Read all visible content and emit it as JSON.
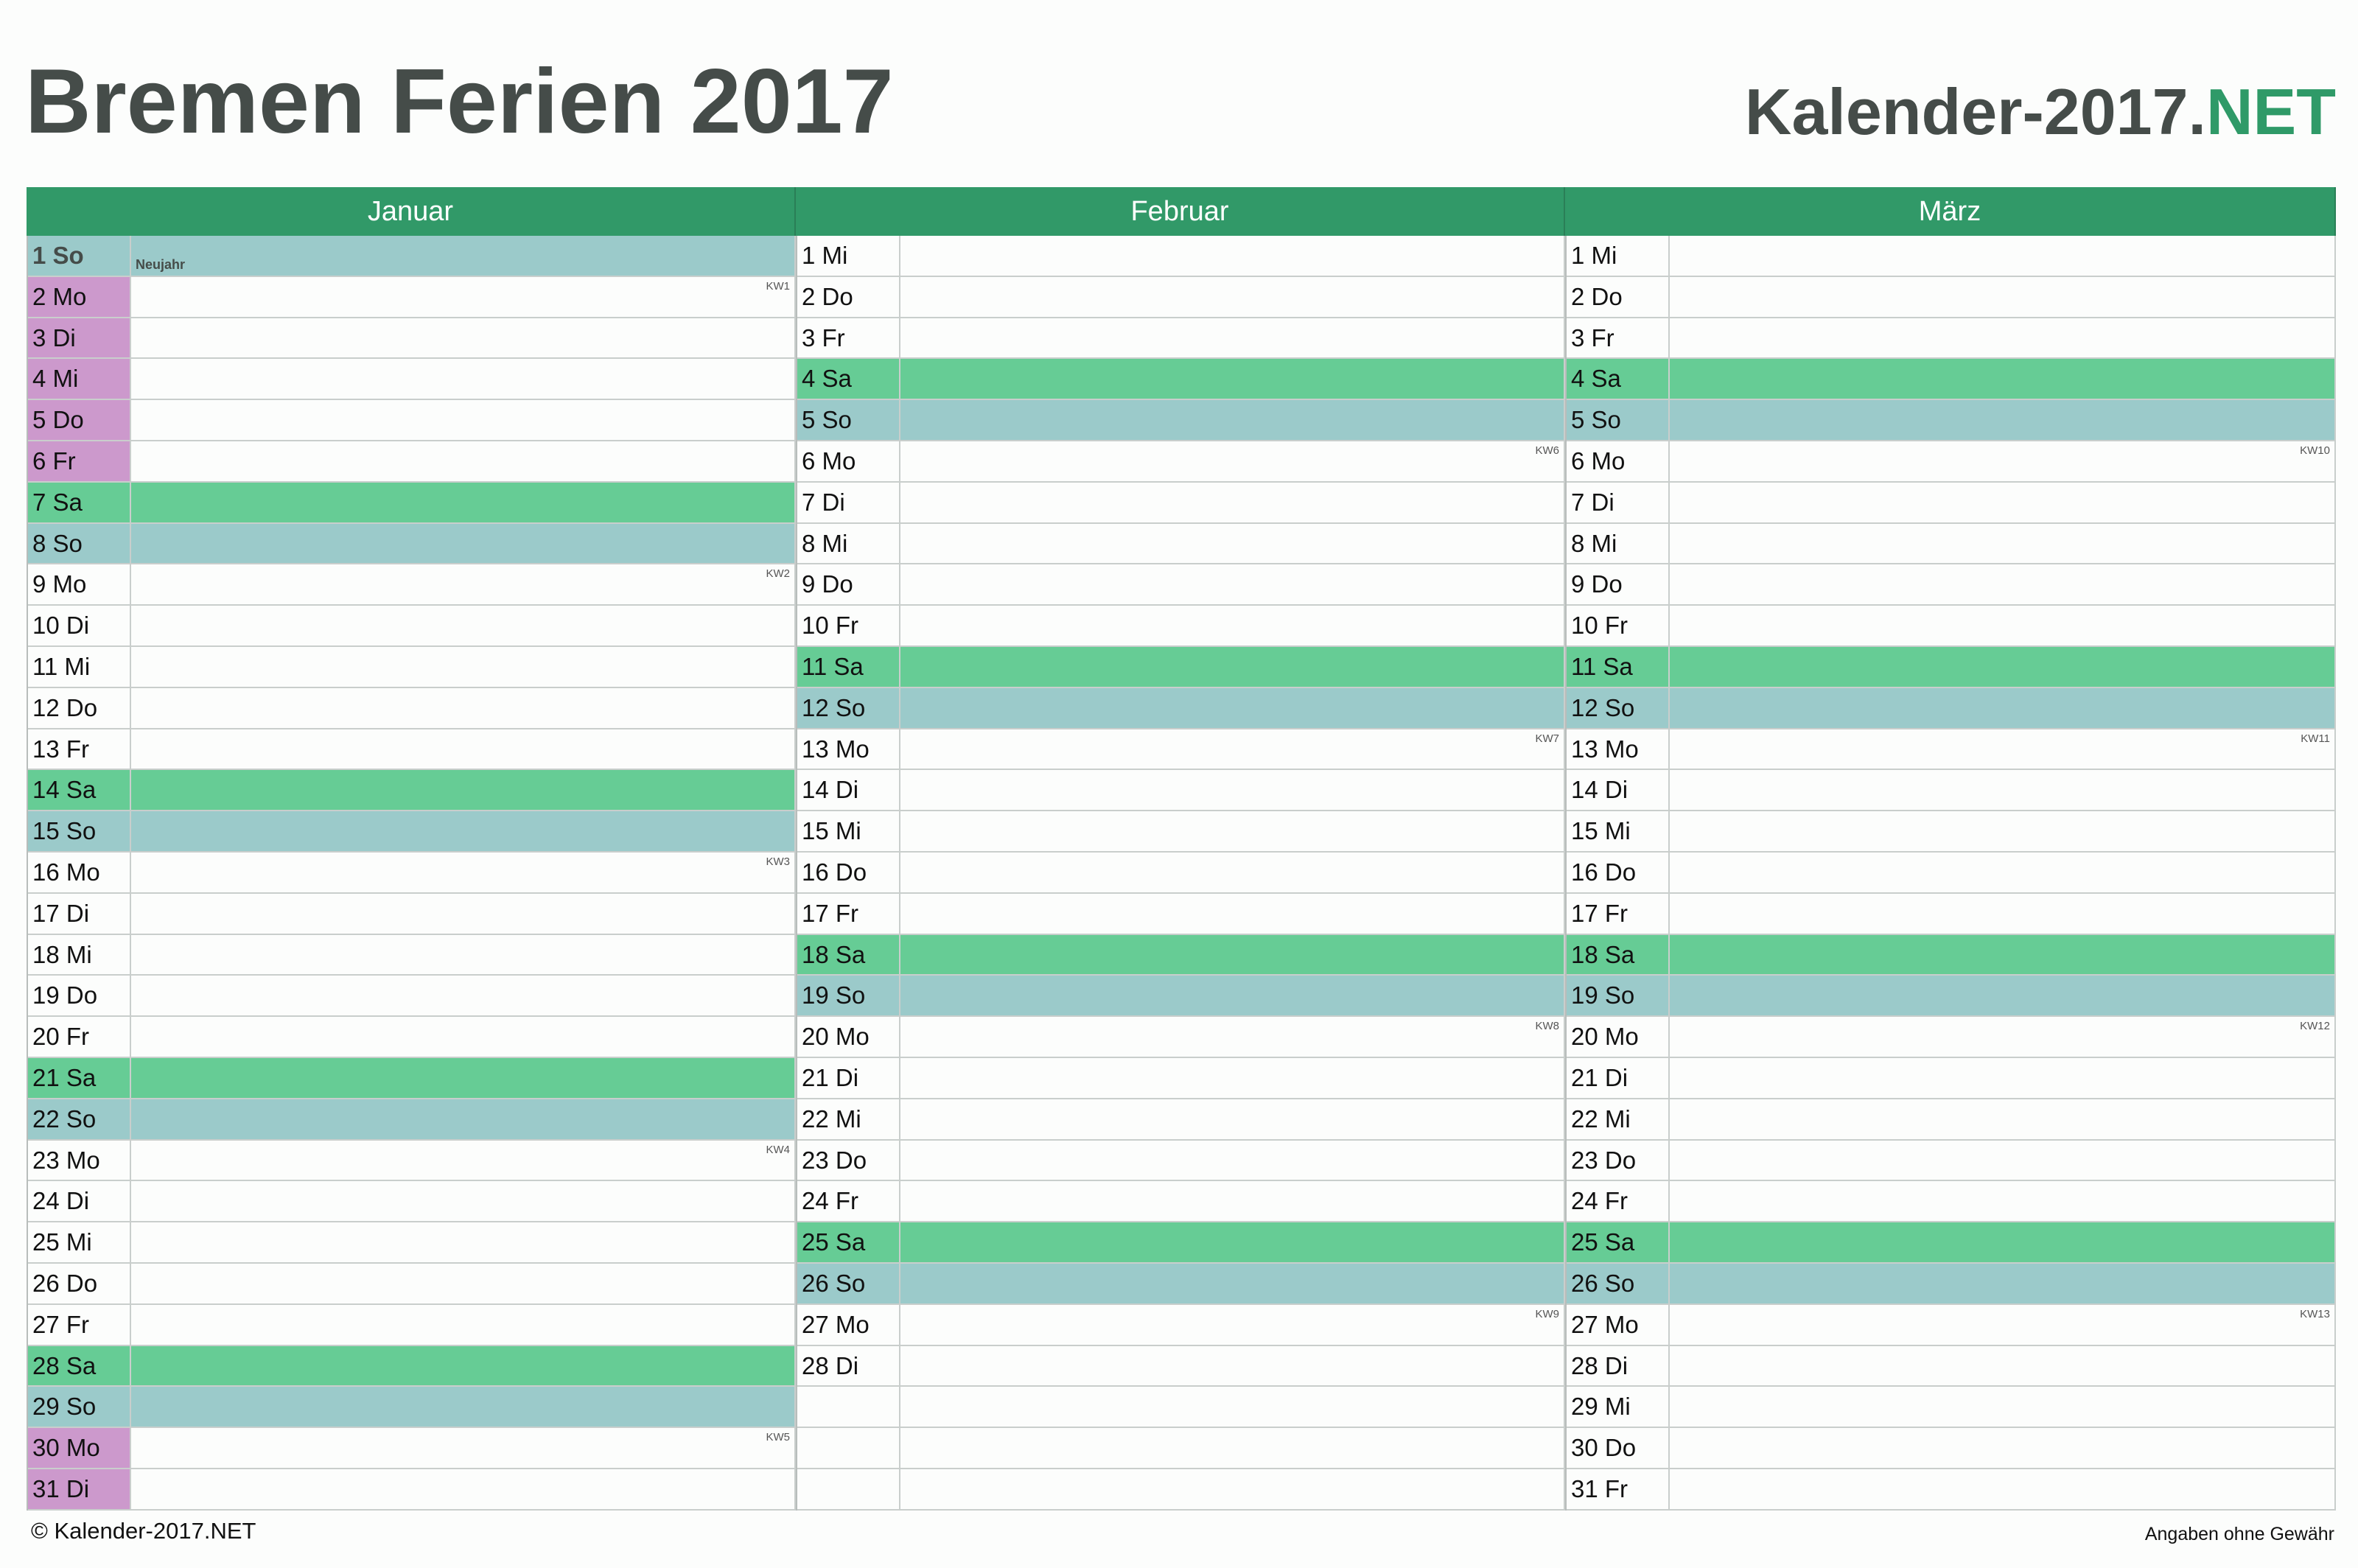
{
  "header": {
    "title": "Bremen Ferien 2017",
    "brand_main": "Kalender-2017.",
    "brand_accent": "NET"
  },
  "colors": {
    "month_header": "#319968",
    "saturday": "#66cc95",
    "sunday": "#9bcaca",
    "school_holiday": "#cc99cc",
    "title": "#454c49"
  },
  "months": [
    {
      "name": "Januar",
      "days": [
        {
          "label": "1 So",
          "type": "so",
          "holiday": true,
          "note": "Neujahr"
        },
        {
          "label": "2 Mo",
          "type": "wd",
          "ferien": true,
          "kw": "KW1"
        },
        {
          "label": "3 Di",
          "type": "wd",
          "ferien": true
        },
        {
          "label": "4 Mi",
          "type": "wd",
          "ferien": true
        },
        {
          "label": "5 Do",
          "type": "wd",
          "ferien": true
        },
        {
          "label": "6 Fr",
          "type": "wd",
          "ferien": true
        },
        {
          "label": "7 Sa",
          "type": "sa"
        },
        {
          "label": "8 So",
          "type": "so"
        },
        {
          "label": "9 Mo",
          "type": "wd",
          "kw": "KW2"
        },
        {
          "label": "10 Di",
          "type": "wd"
        },
        {
          "label": "11 Mi",
          "type": "wd"
        },
        {
          "label": "12 Do",
          "type": "wd"
        },
        {
          "label": "13 Fr",
          "type": "wd"
        },
        {
          "label": "14 Sa",
          "type": "sa"
        },
        {
          "label": "15 So",
          "type": "so"
        },
        {
          "label": "16 Mo",
          "type": "wd",
          "kw": "KW3"
        },
        {
          "label": "17 Di",
          "type": "wd"
        },
        {
          "label": "18 Mi",
          "type": "wd"
        },
        {
          "label": "19 Do",
          "type": "wd"
        },
        {
          "label": "20 Fr",
          "type": "wd"
        },
        {
          "label": "21 Sa",
          "type": "sa"
        },
        {
          "label": "22 So",
          "type": "so"
        },
        {
          "label": "23 Mo",
          "type": "wd",
          "kw": "KW4"
        },
        {
          "label": "24 Di",
          "type": "wd"
        },
        {
          "label": "25 Mi",
          "type": "wd"
        },
        {
          "label": "26 Do",
          "type": "wd"
        },
        {
          "label": "27 Fr",
          "type": "wd"
        },
        {
          "label": "28 Sa",
          "type": "sa"
        },
        {
          "label": "29 So",
          "type": "so"
        },
        {
          "label": "30 Mo",
          "type": "wd",
          "ferien": true,
          "kw": "KW5"
        },
        {
          "label": "31 Di",
          "type": "wd",
          "ferien": true
        }
      ]
    },
    {
      "name": "Februar",
      "days": [
        {
          "label": "1 Mi",
          "type": "wd"
        },
        {
          "label": "2 Do",
          "type": "wd"
        },
        {
          "label": "3 Fr",
          "type": "wd"
        },
        {
          "label": "4 Sa",
          "type": "sa"
        },
        {
          "label": "5 So",
          "type": "so"
        },
        {
          "label": "6 Mo",
          "type": "wd",
          "kw": "KW6"
        },
        {
          "label": "7 Di",
          "type": "wd"
        },
        {
          "label": "8 Mi",
          "type": "wd"
        },
        {
          "label": "9 Do",
          "type": "wd"
        },
        {
          "label": "10 Fr",
          "type": "wd"
        },
        {
          "label": "11 Sa",
          "type": "sa"
        },
        {
          "label": "12 So",
          "type": "so"
        },
        {
          "label": "13 Mo",
          "type": "wd",
          "kw": "KW7"
        },
        {
          "label": "14 Di",
          "type": "wd"
        },
        {
          "label": "15 Mi",
          "type": "wd"
        },
        {
          "label": "16 Do",
          "type": "wd"
        },
        {
          "label": "17 Fr",
          "type": "wd"
        },
        {
          "label": "18 Sa",
          "type": "sa"
        },
        {
          "label": "19 So",
          "type": "so"
        },
        {
          "label": "20 Mo",
          "type": "wd",
          "kw": "KW8"
        },
        {
          "label": "21 Di",
          "type": "wd"
        },
        {
          "label": "22 Mi",
          "type": "wd"
        },
        {
          "label": "23 Do",
          "type": "wd"
        },
        {
          "label": "24 Fr",
          "type": "wd"
        },
        {
          "label": "25 Sa",
          "type": "sa"
        },
        {
          "label": "26 So",
          "type": "so"
        },
        {
          "label": "27 Mo",
          "type": "wd",
          "kw": "KW9"
        },
        {
          "label": "28 Di",
          "type": "wd"
        },
        {
          "label": "",
          "type": "empty"
        },
        {
          "label": "",
          "type": "empty"
        },
        {
          "label": "",
          "type": "empty"
        }
      ]
    },
    {
      "name": "März",
      "days": [
        {
          "label": "1 Mi",
          "type": "wd"
        },
        {
          "label": "2 Do",
          "type": "wd"
        },
        {
          "label": "3 Fr",
          "type": "wd"
        },
        {
          "label": "4 Sa",
          "type": "sa"
        },
        {
          "label": "5 So",
          "type": "so"
        },
        {
          "label": "6 Mo",
          "type": "wd",
          "kw": "KW10"
        },
        {
          "label": "7 Di",
          "type": "wd"
        },
        {
          "label": "8 Mi",
          "type": "wd"
        },
        {
          "label": "9 Do",
          "type": "wd"
        },
        {
          "label": "10 Fr",
          "type": "wd"
        },
        {
          "label": "11 Sa",
          "type": "sa"
        },
        {
          "label": "12 So",
          "type": "so"
        },
        {
          "label": "13 Mo",
          "type": "wd",
          "kw": "KW11"
        },
        {
          "label": "14 Di",
          "type": "wd"
        },
        {
          "label": "15 Mi",
          "type": "wd"
        },
        {
          "label": "16 Do",
          "type": "wd"
        },
        {
          "label": "17 Fr",
          "type": "wd"
        },
        {
          "label": "18 Sa",
          "type": "sa"
        },
        {
          "label": "19 So",
          "type": "so"
        },
        {
          "label": "20 Mo",
          "type": "wd",
          "kw": "KW12"
        },
        {
          "label": "21 Di",
          "type": "wd"
        },
        {
          "label": "22 Mi",
          "type": "wd"
        },
        {
          "label": "23 Do",
          "type": "wd"
        },
        {
          "label": "24 Fr",
          "type": "wd"
        },
        {
          "label": "25 Sa",
          "type": "sa"
        },
        {
          "label": "26 So",
          "type": "so"
        },
        {
          "label": "27 Mo",
          "type": "wd",
          "kw": "KW13"
        },
        {
          "label": "28 Di",
          "type": "wd"
        },
        {
          "label": "29 Mi",
          "type": "wd"
        },
        {
          "label": "30 Do",
          "type": "wd"
        },
        {
          "label": "31 Fr",
          "type": "wd"
        }
      ]
    }
  ],
  "footer": {
    "copyright": "© Kalender-2017.NET",
    "disclaimer": "Angaben ohne Gewähr"
  }
}
